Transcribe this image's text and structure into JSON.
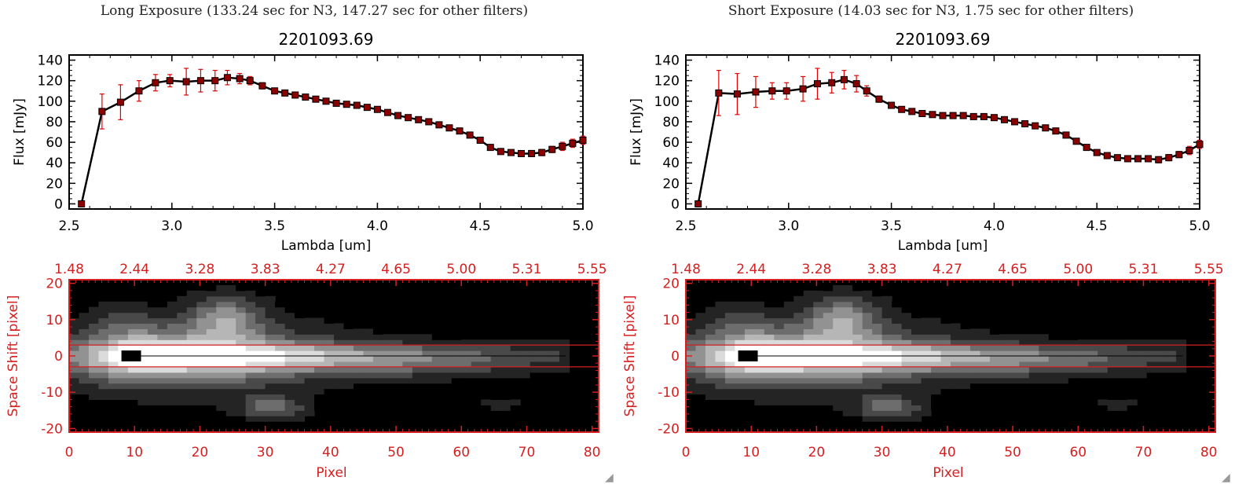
{
  "panels": [
    {
      "exposure_title": "Long Exposure (133.24 sec for N3, 147.27 sec for other filters)"
    },
    {
      "exposure_title": "Short Exposure (14.03 sec for N3, 1.75 sec for other filters)"
    }
  ],
  "chart_data": [
    {
      "type": "line",
      "title": "2201093.69",
      "xlabel": "Lambda [um]",
      "ylabel": "Flux [mJy]",
      "xlim": [
        2.5,
        5.0
      ],
      "ylim": [
        -5,
        145
      ],
      "xticks": [
        "2.5",
        "3.0",
        "3.5",
        "4.0",
        "4.5",
        "5.0"
      ],
      "yticks": [
        "0",
        "20",
        "40",
        "60",
        "80",
        "100",
        "120",
        "140"
      ],
      "line_color": "#000000",
      "marker_color": "#8b0000",
      "errorbar_color": "#e00000",
      "x": [
        2.56,
        2.66,
        2.75,
        2.84,
        2.92,
        2.99,
        3.07,
        3.14,
        3.21,
        3.27,
        3.33,
        3.38,
        3.44,
        3.5,
        3.55,
        3.6,
        3.65,
        3.7,
        3.75,
        3.8,
        3.85,
        3.9,
        3.95,
        4.0,
        4.05,
        4.1,
        4.15,
        4.2,
        4.25,
        4.3,
        4.35,
        4.4,
        4.45,
        4.5,
        4.55,
        4.6,
        4.65,
        4.7,
        4.75,
        4.8,
        4.85,
        4.9,
        4.95,
        5.0
      ],
      "y": [
        0,
        90,
        99,
        110,
        118,
        120,
        119,
        120,
        120,
        123,
        122,
        120,
        115,
        110,
        108,
        106,
        104,
        102,
        100,
        98,
        97,
        96,
        94,
        92,
        89,
        86,
        84,
        82,
        80,
        77,
        74,
        71,
        67,
        62,
        55,
        51,
        50,
        49,
        49,
        50,
        53,
        56,
        59,
        62
      ],
      "yerr": [
        1,
        17,
        17,
        10,
        8,
        6,
        13,
        11,
        10,
        7,
        5,
        4,
        3,
        2,
        2,
        2,
        2,
        2,
        2,
        2,
        2,
        2,
        2,
        2,
        2,
        2,
        2,
        2,
        2,
        2,
        2,
        2,
        2,
        2,
        2,
        2,
        2,
        2,
        3,
        3,
        3,
        4,
        4,
        4
      ]
    },
    {
      "type": "heatmap",
      "xlabel": "Pixel",
      "ylabel": "Space Shift [pixel]",
      "xlim": [
        0,
        81
      ],
      "ylim": [
        -21,
        21
      ],
      "xticks": [
        "0",
        "10",
        "20",
        "30",
        "40",
        "50",
        "60",
        "70",
        "80"
      ],
      "yticks": [
        "-20",
        "-10",
        "0",
        "10",
        "20"
      ],
      "top_ticks": [
        "1.48",
        "2.44",
        "3.28",
        "3.83",
        "4.27",
        "4.65",
        "5.00",
        "5.31",
        "5.55"
      ],
      "aperture_lines": [
        3,
        -3
      ],
      "axis_color": "#d42020",
      "blobs": [
        {
          "x": 18,
          "y": 0,
          "sx": 14,
          "sy": 6,
          "v": 0.75
        },
        {
          "x": 40,
          "y": 0,
          "sx": 26,
          "sy": 2.6,
          "v": 0.55
        },
        {
          "x": 10,
          "y": 0,
          "sx": 4,
          "sy": 4,
          "v": 0.35
        },
        {
          "x": 24,
          "y": 11,
          "sx": 4,
          "sy": 4,
          "v": 0.5
        },
        {
          "x": 31,
          "y": -14,
          "sx": 3.5,
          "sy": 2.2,
          "v": 0.42
        },
        {
          "x": 8,
          "y": 10,
          "sx": 3,
          "sy": 3,
          "v": 0.18
        },
        {
          "x": 66,
          "y": -13,
          "sx": 2,
          "sy": 1.2,
          "v": 0.2
        },
        {
          "x": 52,
          "y": -4,
          "sx": 12,
          "sy": 2,
          "v": 0.15
        }
      ],
      "saturated_block": {
        "x0": 8,
        "x1": 11,
        "y0": -1.5,
        "y1": 1.5
      }
    },
    {
      "type": "line",
      "title": "2201093.69",
      "xlabel": "Lambda [um]",
      "ylabel": "Flux [mJy]",
      "xlim": [
        2.5,
        5.0
      ],
      "ylim": [
        -5,
        145
      ],
      "xticks": [
        "2.5",
        "3.0",
        "3.5",
        "4.0",
        "4.5",
        "5.0"
      ],
      "yticks": [
        "0",
        "20",
        "40",
        "60",
        "80",
        "100",
        "120",
        "140"
      ],
      "line_color": "#000000",
      "marker_color": "#8b0000",
      "errorbar_color": "#e00000",
      "x": [
        2.56,
        2.66,
        2.75,
        2.84,
        2.92,
        2.99,
        3.07,
        3.14,
        3.21,
        3.27,
        3.33,
        3.38,
        3.44,
        3.5,
        3.55,
        3.6,
        3.65,
        3.7,
        3.75,
        3.8,
        3.85,
        3.9,
        3.95,
        4.0,
        4.05,
        4.1,
        4.15,
        4.2,
        4.25,
        4.3,
        4.35,
        4.4,
        4.45,
        4.5,
        4.55,
        4.6,
        4.65,
        4.7,
        4.75,
        4.8,
        4.85,
        4.9,
        4.95,
        5.0
      ],
      "y": [
        0,
        108,
        107,
        109,
        110,
        110,
        112,
        117,
        118,
        121,
        117,
        110,
        102,
        96,
        92,
        90,
        88,
        87,
        86,
        86,
        86,
        85,
        85,
        84,
        82,
        80,
        78,
        76,
        74,
        71,
        67,
        61,
        55,
        50,
        47,
        45,
        44,
        44,
        44,
        43,
        45,
        48,
        52,
        58
      ],
      "yerr": [
        1,
        22,
        20,
        15,
        8,
        8,
        12,
        15,
        10,
        9,
        8,
        5,
        3,
        2,
        2,
        2,
        2,
        2,
        2,
        2,
        2,
        2,
        2,
        2,
        2,
        2,
        2,
        2,
        2,
        2,
        2,
        2,
        2,
        2,
        2,
        2,
        2,
        2,
        2,
        3,
        3,
        3,
        4,
        4
      ]
    },
    {
      "type": "heatmap",
      "xlabel": "Pixel",
      "ylabel": "Space Shift [pixel]",
      "xlim": [
        0,
        81
      ],
      "ylim": [
        -21,
        21
      ],
      "xticks": [
        "0",
        "10",
        "20",
        "30",
        "40",
        "50",
        "60",
        "70",
        "80"
      ],
      "yticks": [
        "-20",
        "-10",
        "0",
        "10",
        "20"
      ],
      "top_ticks": [
        "1.48",
        "2.44",
        "3.28",
        "3.83",
        "4.27",
        "4.65",
        "5.00",
        "5.31",
        "5.55"
      ],
      "aperture_lines": [
        3,
        -3
      ],
      "axis_color": "#d42020",
      "blobs": [
        {
          "x": 18,
          "y": 0,
          "sx": 14,
          "sy": 6,
          "v": 0.75
        },
        {
          "x": 40,
          "y": 0,
          "sx": 26,
          "sy": 2.6,
          "v": 0.55
        },
        {
          "x": 10,
          "y": 0,
          "sx": 4,
          "sy": 4,
          "v": 0.35
        },
        {
          "x": 24,
          "y": 11,
          "sx": 4,
          "sy": 4,
          "v": 0.5
        },
        {
          "x": 31,
          "y": -14,
          "sx": 3.5,
          "sy": 2.2,
          "v": 0.42
        },
        {
          "x": 8,
          "y": 10,
          "sx": 3,
          "sy": 3,
          "v": 0.18
        },
        {
          "x": 66,
          "y": -13,
          "sx": 2,
          "sy": 1.2,
          "v": 0.2
        },
        {
          "x": 52,
          "y": -4,
          "sx": 12,
          "sy": 2,
          "v": 0.15
        }
      ],
      "saturated_block": {
        "x0": 8,
        "x1": 11,
        "y0": -1.5,
        "y1": 1.5
      }
    }
  ]
}
